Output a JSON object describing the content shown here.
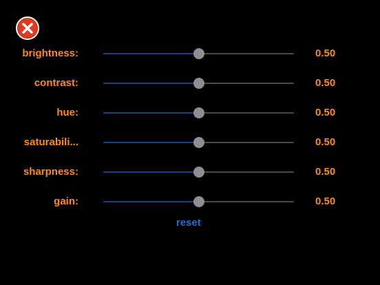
{
  "close_icon": "close-icon",
  "colors": {
    "label": "#ff8a1e",
    "accent": "#1f6fd6",
    "close": "#e03a22"
  },
  "sliders": [
    {
      "label": "brightness:",
      "value_text": "0.50",
      "value": 0.5
    },
    {
      "label": "contrast:",
      "value_text": "0.50",
      "value": 0.5
    },
    {
      "label": "hue:",
      "value_text": "0.50",
      "value": 0.5
    },
    {
      "label": "saturabili...",
      "value_text": "0.50",
      "value": 0.5
    },
    {
      "label": "sharpness:",
      "value_text": "0.50",
      "value": 0.5
    },
    {
      "label": "gain:",
      "value_text": "0.50",
      "value": 0.5
    }
  ],
  "reset_label": "reset"
}
